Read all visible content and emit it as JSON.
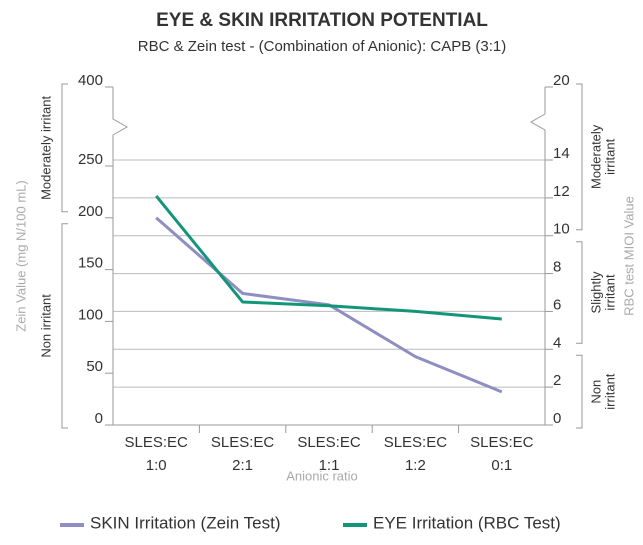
{
  "chart_data": {
    "type": "line",
    "title": "EYE & SKIN IRRITATION POTENTIAL",
    "subtitle": "RBC & Zein test - (Combination of Anionic): CAPB (3:1)",
    "x_label": "Anionic ratio",
    "y_label": "Zein Value (mg N/100 mL)",
    "y2_label": "RBC test MIOI Value",
    "categories": [
      [
        "SLES:EC",
        "1:0"
      ],
      [
        "SLES:EC",
        "2:1"
      ],
      [
        "SLES:EC",
        "1:1"
      ],
      [
        "SLES:EC",
        "1:2"
      ],
      [
        "SLES:EC",
        "0:1"
      ]
    ],
    "series": [
      {
        "name": "SKIN Irritation (Zein Test)",
        "color": "#8e8ec2",
        "values": [
          200,
          127,
          116,
          66,
          32
        ]
      },
      {
        "name": "EYE Irritation (RBC Test)",
        "color": "#13957a",
        "axis": "y2",
        "values": [
          12.1,
          6.5,
          6.3,
          6.0,
          5.6
        ]
      }
    ],
    "ylim": [
      0,
      400
    ],
    "yticks": [
      0,
      50,
      100,
      150,
      200,
      250,
      400
    ],
    "y2lim": [
      0,
      20
    ],
    "y2ticks": [
      0,
      2,
      4,
      6,
      8,
      10,
      12,
      14,
      20
    ],
    "axis_break": true,
    "y_zones": [
      {
        "label": [
          "Moderately irritant"
        ],
        "range": [
          200,
          400
        ]
      },
      {
        "label": [
          "Non irritant"
        ],
        "range": [
          0,
          200
        ]
      }
    ],
    "y2_zones": [
      {
        "label": [
          "Moderately",
          "irritant"
        ],
        "range": [
          10,
          20
        ]
      },
      {
        "label": [
          "Slightly",
          "irritant"
        ],
        "range": [
          4,
          10
        ]
      },
      {
        "label": [
          "Non",
          "irritant"
        ],
        "range": [
          0,
          4
        ]
      }
    ],
    "grid": true,
    "legend": "bottom"
  }
}
